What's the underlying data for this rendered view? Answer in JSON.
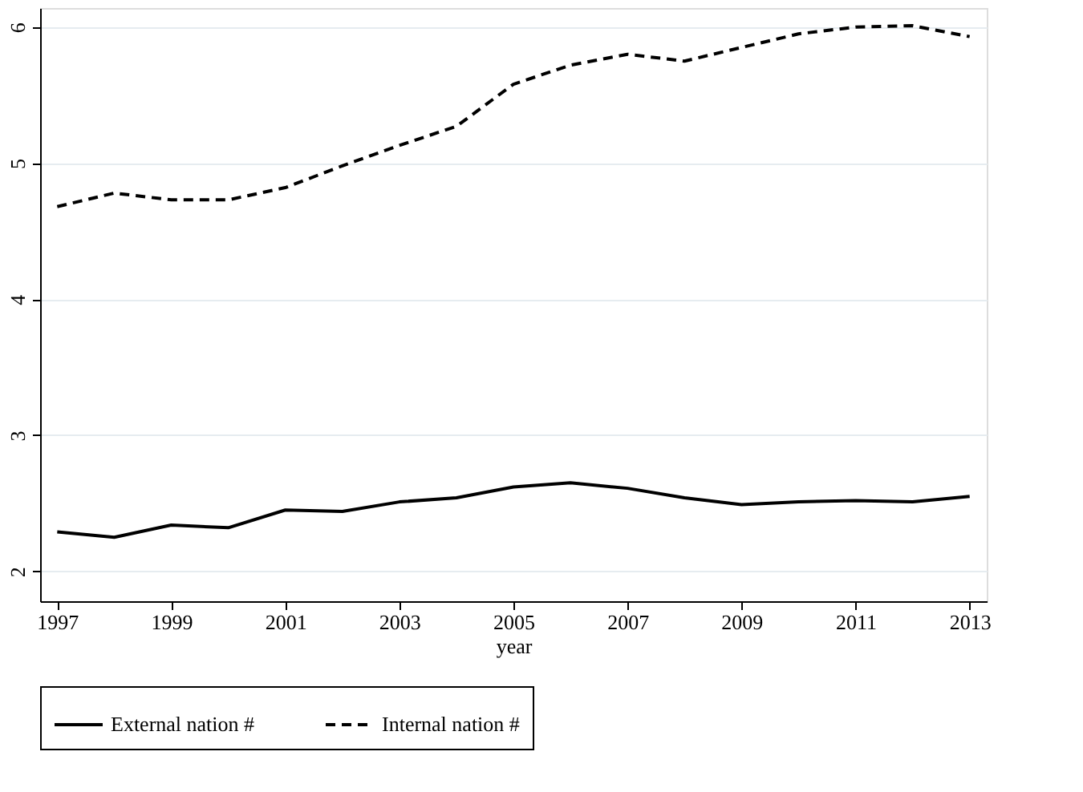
{
  "chart_data": {
    "type": "line",
    "xlabel": "year",
    "x": [
      1997,
      1998,
      1999,
      2000,
      2001,
      2002,
      2003,
      2004,
      2005,
      2006,
      2007,
      2008,
      2009,
      2010,
      2011,
      2012,
      2013
    ],
    "series": [
      {
        "name": "External nation #",
        "color": "#000000",
        "line_style": "solid",
        "values": [
          2.29,
          2.25,
          2.34,
          2.32,
          2.45,
          2.44,
          2.51,
          2.54,
          2.62,
          2.65,
          2.61,
          2.54,
          2.49,
          2.51,
          2.52,
          2.51,
          2.55
        ]
      },
      {
        "name": "Internal nation #",
        "color": "#000000",
        "line_style": "dashed",
        "values": [
          4.68,
          4.78,
          4.73,
          4.73,
          4.82,
          4.98,
          5.13,
          5.27,
          5.58,
          5.72,
          5.8,
          5.75,
          5.85,
          5.95,
          6.0,
          6.01,
          5.93
        ]
      }
    ],
    "xlim": [
      1996.7,
      2013.3
    ],
    "xticks": [
      1997,
      1999,
      2001,
      2003,
      2005,
      2007,
      2009,
      2011,
      2013
    ],
    "ylim": [
      1.78,
      6.14
    ],
    "yticks": [
      2,
      3,
      4,
      5,
      6
    ],
    "grid": "y",
    "legend": "bottom",
    "marker": "none"
  }
}
